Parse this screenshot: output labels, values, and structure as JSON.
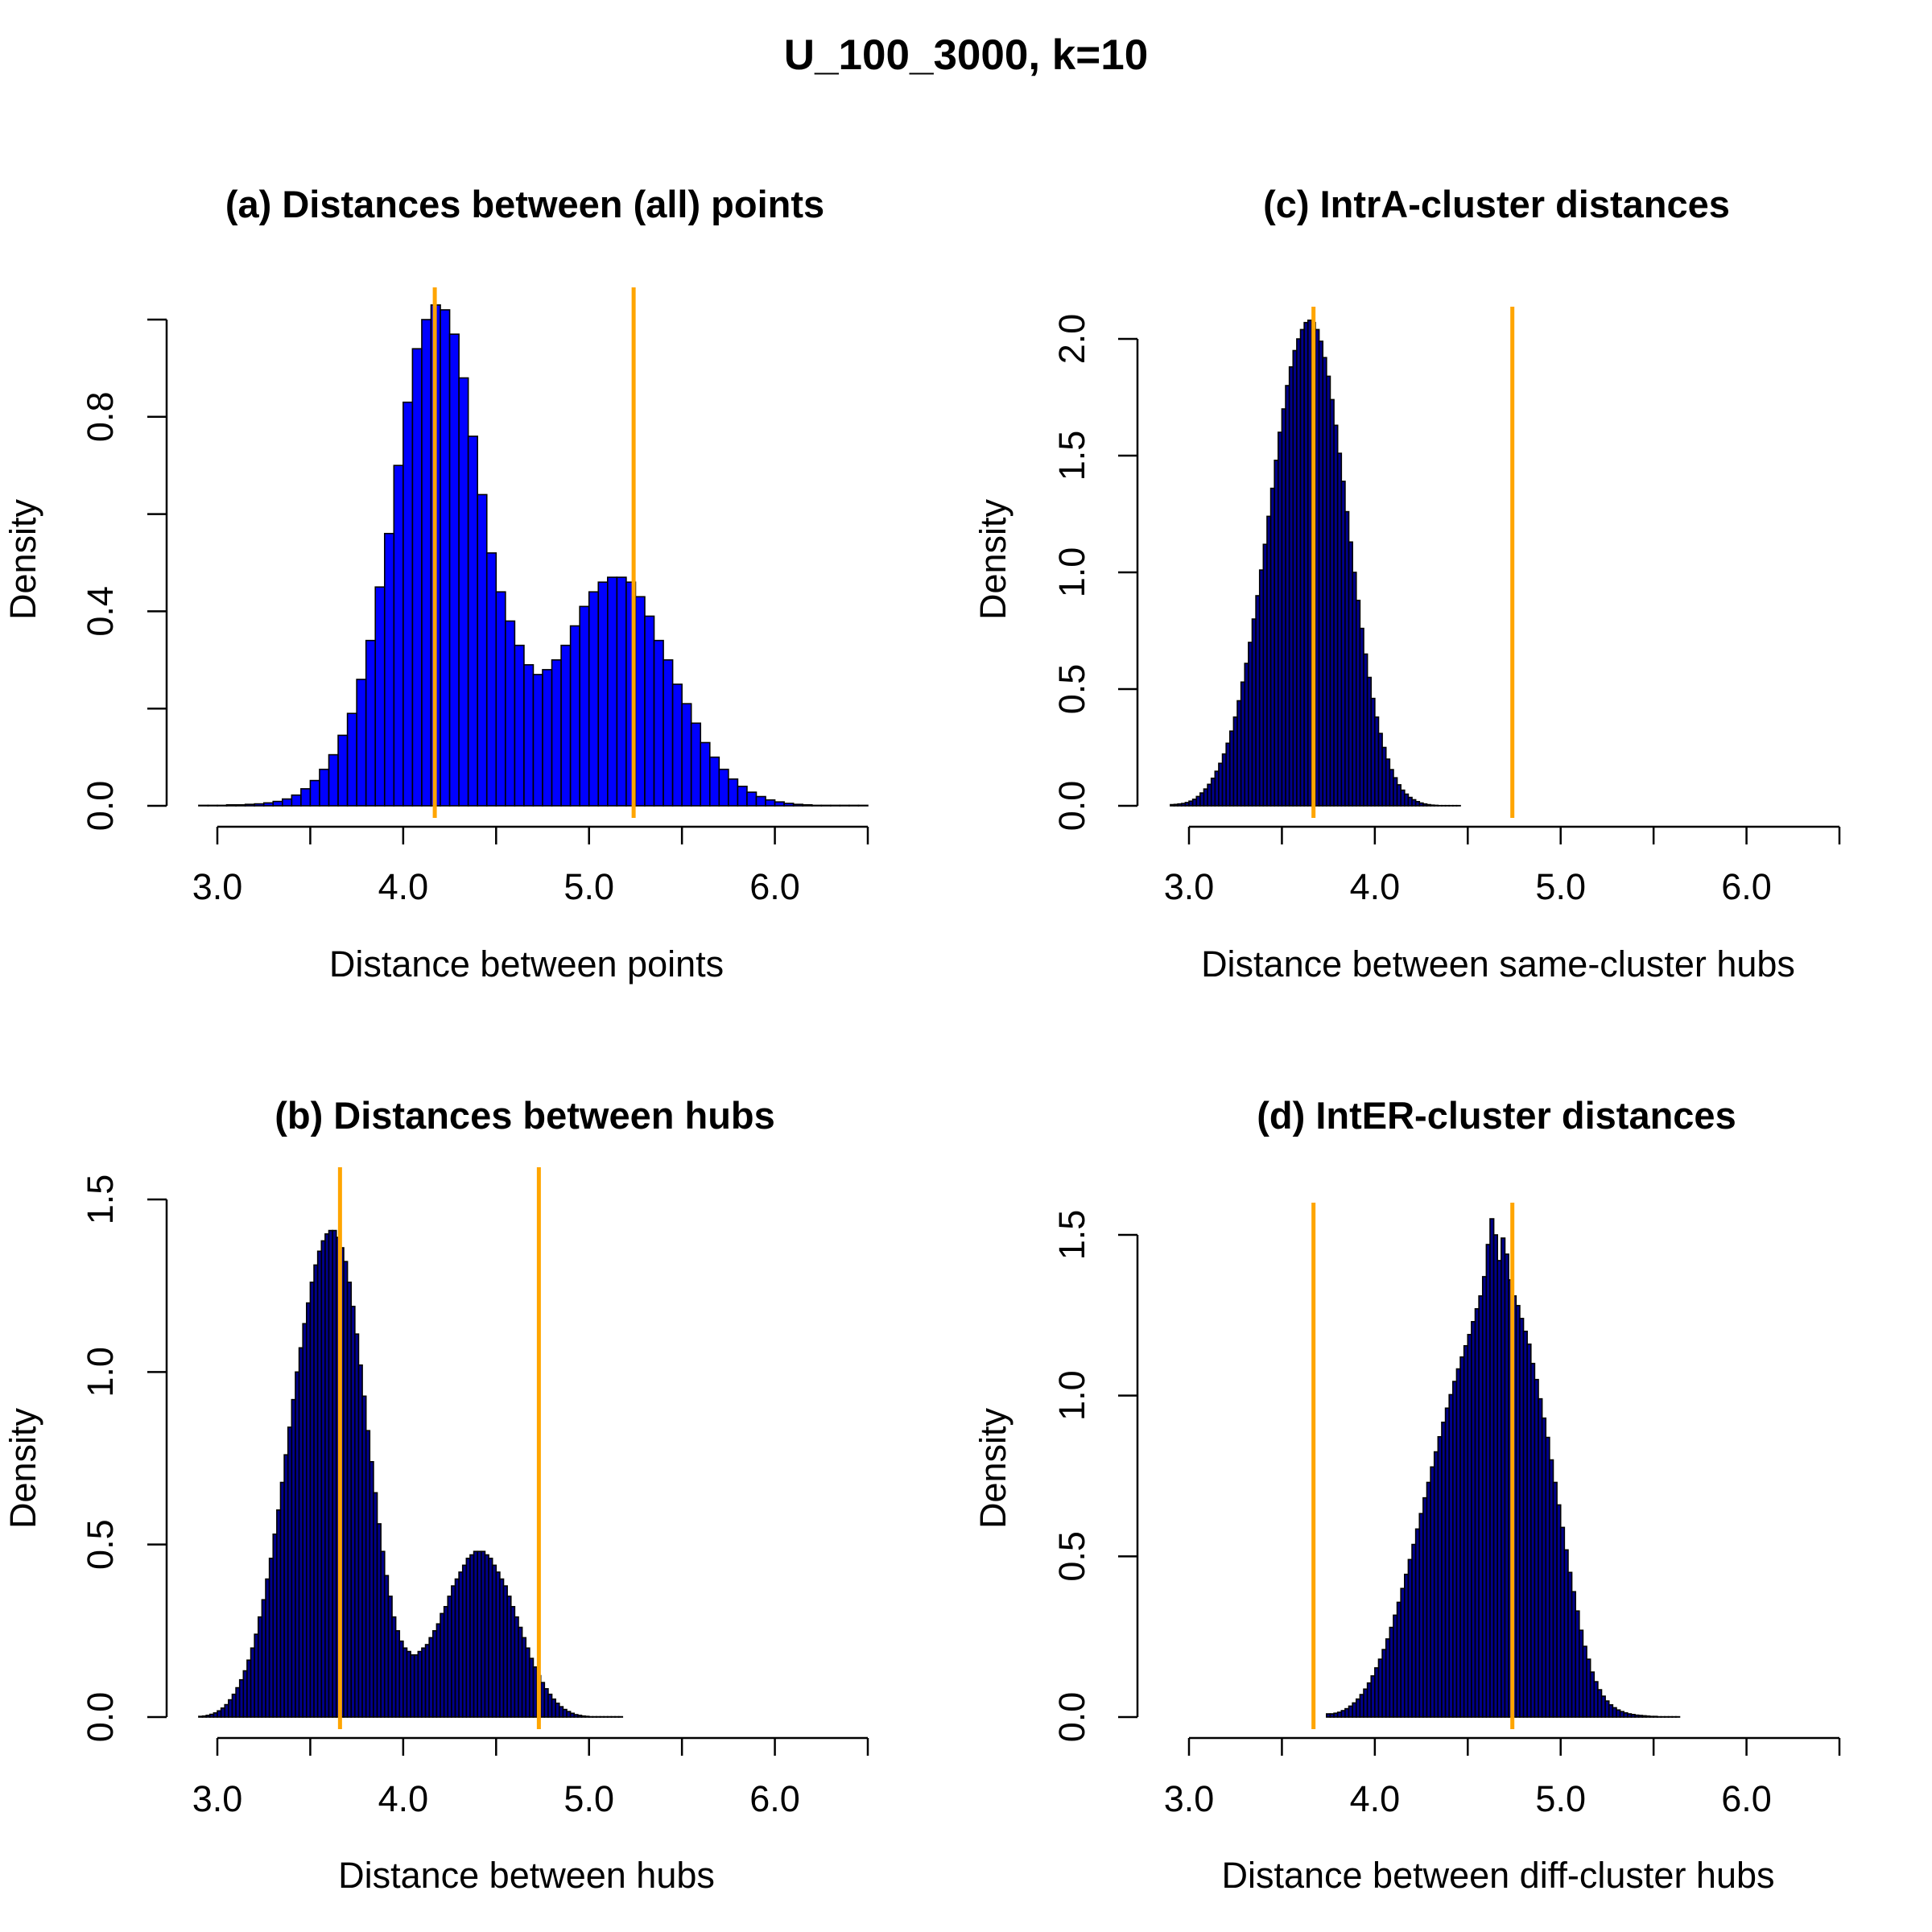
{
  "title": "U_100_3000, k=10",
  "colors": {
    "bar_light": "#0000ff",
    "bar_dark": "#00008b",
    "vline": "#ffa500"
  },
  "chart_data": [
    {
      "id": "a",
      "type": "histogram",
      "title": "(a) Distances between (all) points",
      "xlabel": "Distance between points",
      "ylabel": "Density",
      "xticks": [
        "3.0",
        "",
        "4.0",
        "",
        "5.0",
        "",
        "6.0",
        ""
      ],
      "xtick_values": [
        3.0,
        3.5,
        4.0,
        4.5,
        5.0,
        5.5,
        6.0,
        6.5
      ],
      "yticks": [
        "0.0",
        "",
        "0.4",
        "",
        "0.8",
        ""
      ],
      "ytick_values": [
        0.0,
        0.2,
        0.4,
        0.6,
        0.8,
        1.0
      ],
      "xlim": [
        3.0,
        6.5
      ],
      "ylim": [
        0,
        1.0
      ],
      "bar_color": "#0000ff",
      "bins": {
        "start": 2.9,
        "width": 0.05,
        "values": [
          0.001,
          0.001,
          0.001,
          0.002,
          0.002,
          0.003,
          0.004,
          0.006,
          0.009,
          0.014,
          0.022,
          0.035,
          0.052,
          0.075,
          0.105,
          0.145,
          0.19,
          0.26,
          0.34,
          0.45,
          0.56,
          0.7,
          0.83,
          0.94,
          1.0,
          1.03,
          1.02,
          0.97,
          0.88,
          0.76,
          0.64,
          0.52,
          0.44,
          0.38,
          0.33,
          0.29,
          0.27,
          0.28,
          0.3,
          0.33,
          0.37,
          0.41,
          0.44,
          0.46,
          0.47,
          0.47,
          0.46,
          0.43,
          0.39,
          0.34,
          0.3,
          0.25,
          0.21,
          0.17,
          0.13,
          0.1,
          0.075,
          0.055,
          0.04,
          0.028,
          0.019,
          0.012,
          0.008,
          0.005,
          0.003,
          0.002,
          0.001,
          0.001,
          0.001,
          0.001,
          0.001,
          0.001
        ]
      },
      "vlines": [
        4.17,
        5.24
      ]
    },
    {
      "id": "c",
      "type": "histogram",
      "title": "(c) IntrA-cluster distances",
      "xlabel": "Distance between same-cluster hubs",
      "ylabel": "Density",
      "xticks": [
        "3.0",
        "",
        "4.0",
        "",
        "5.0",
        "",
        "6.0",
        ""
      ],
      "xtick_values": [
        3.0,
        3.5,
        4.0,
        4.5,
        5.0,
        5.5,
        6.0,
        6.5
      ],
      "yticks": [
        "0.0",
        "0.5",
        "1.0",
        "1.5",
        "2.0"
      ],
      "ytick_values": [
        0.0,
        0.5,
        1.0,
        1.5,
        2.0
      ],
      "xlim": [
        3.0,
        6.5
      ],
      "ylim": [
        0,
        2.0
      ],
      "bar_color": "#00008b",
      "bins": {
        "start": 2.9,
        "width": 0.02,
        "values": [
          0.005,
          0.006,
          0.008,
          0.01,
          0.014,
          0.02,
          0.028,
          0.04,
          0.055,
          0.072,
          0.092,
          0.118,
          0.148,
          0.182,
          0.222,
          0.268,
          0.32,
          0.38,
          0.45,
          0.53,
          0.61,
          0.7,
          0.8,
          0.9,
          1.01,
          1.12,
          1.24,
          1.36,
          1.48,
          1.6,
          1.7,
          1.8,
          1.88,
          1.95,
          2.0,
          2.04,
          2.07,
          2.08,
          2.07,
          2.04,
          1.99,
          1.92,
          1.84,
          1.74,
          1.63,
          1.51,
          1.39,
          1.26,
          1.13,
          1.0,
          0.88,
          0.76,
          0.65,
          0.55,
          0.46,
          0.38,
          0.31,
          0.25,
          0.2,
          0.155,
          0.12,
          0.09,
          0.067,
          0.05,
          0.036,
          0.026,
          0.018,
          0.012,
          0.008,
          0.005,
          0.003,
          0.002,
          0.001,
          0.001,
          0.001,
          0.001,
          0.001,
          0.001
        ]
      },
      "vlines": [
        3.67,
        4.74
      ]
    },
    {
      "id": "b",
      "type": "histogram",
      "title": "(b) Distances between hubs",
      "xlabel": "Distance between hubs",
      "ylabel": "Density",
      "xticks": [
        "3.0",
        "",
        "4.0",
        "",
        "5.0",
        "",
        "6.0",
        ""
      ],
      "xtick_values": [
        3.0,
        3.5,
        4.0,
        4.5,
        5.0,
        5.5,
        6.0,
        6.5
      ],
      "yticks": [
        "0.0",
        "0.5",
        "1.0",
        "1.5"
      ],
      "ytick_values": [
        0.0,
        0.5,
        1.0,
        1.5
      ],
      "xlim": [
        3.0,
        6.5
      ],
      "ylim": [
        0,
        1.5
      ],
      "bar_color": "#00008b",
      "bins": {
        "start": 2.9,
        "width": 0.02,
        "values": [
          0.002,
          0.003,
          0.005,
          0.008,
          0.012,
          0.018,
          0.026,
          0.036,
          0.05,
          0.066,
          0.085,
          0.108,
          0.134,
          0.165,
          0.2,
          0.24,
          0.29,
          0.34,
          0.4,
          0.46,
          0.53,
          0.6,
          0.68,
          0.76,
          0.84,
          0.92,
          1.0,
          1.07,
          1.14,
          1.2,
          1.26,
          1.31,
          1.35,
          1.38,
          1.4,
          1.41,
          1.41,
          1.39,
          1.36,
          1.32,
          1.26,
          1.19,
          1.11,
          1.02,
          0.93,
          0.83,
          0.74,
          0.65,
          0.56,
          0.48,
          0.41,
          0.35,
          0.29,
          0.25,
          0.22,
          0.2,
          0.19,
          0.18,
          0.18,
          0.19,
          0.2,
          0.21,
          0.23,
          0.25,
          0.27,
          0.3,
          0.32,
          0.35,
          0.38,
          0.4,
          0.42,
          0.44,
          0.46,
          0.47,
          0.48,
          0.48,
          0.48,
          0.47,
          0.46,
          0.44,
          0.42,
          0.4,
          0.38,
          0.35,
          0.32,
          0.29,
          0.26,
          0.23,
          0.2,
          0.17,
          0.145,
          0.12,
          0.1,
          0.082,
          0.066,
          0.052,
          0.04,
          0.03,
          0.022,
          0.016,
          0.011,
          0.007,
          0.005,
          0.003,
          0.002,
          0.001,
          0.001,
          0.001,
          0.001,
          0.001,
          0.001,
          0.001,
          0.001,
          0.001
        ]
      },
      "vlines": [
        3.66,
        4.73
      ]
    },
    {
      "id": "d",
      "type": "histogram",
      "title": "(d) IntER-cluster distances",
      "xlabel": "Distance between diff-cluster hubs",
      "ylabel": "Density",
      "xticks": [
        "3.0",
        "",
        "4.0",
        "",
        "5.0",
        "",
        "6.0",
        ""
      ],
      "xtick_values": [
        3.0,
        3.5,
        4.0,
        4.5,
        5.0,
        5.5,
        6.0,
        6.5
      ],
      "yticks": [
        "0.0",
        "0.5",
        "1.0",
        "1.5"
      ],
      "ytick_values": [
        0.0,
        0.5,
        1.0,
        1.5
      ],
      "xlim": [
        3.0,
        6.5
      ],
      "ylim": [
        0,
        1.5
      ],
      "bar_color": "#00008b",
      "bins": {
        "start": 3.74,
        "width": 0.02,
        "values": [
          0.01,
          0.01,
          0.012,
          0.015,
          0.02,
          0.026,
          0.034,
          0.044,
          0.056,
          0.07,
          0.087,
          0.106,
          0.128,
          0.153,
          0.18,
          0.21,
          0.243,
          0.279,
          0.317,
          0.357,
          0.4,
          0.444,
          0.49,
          0.537,
          0.585,
          0.633,
          0.682,
          0.73,
          0.778,
          0.825,
          0.872,
          0.917,
          0.961,
          1.003,
          1.044,
          1.083,
          1.12,
          1.155,
          1.19,
          1.23,
          1.27,
          1.31,
          1.37,
          1.47,
          1.55,
          1.5,
          1.42,
          1.49,
          1.44,
          1.36,
          1.31,
          1.28,
          1.24,
          1.2,
          1.16,
          1.1,
          1.05,
          0.99,
          0.93,
          0.87,
          0.8,
          0.73,
          0.66,
          0.59,
          0.52,
          0.45,
          0.39,
          0.33,
          0.27,
          0.22,
          0.18,
          0.14,
          0.11,
          0.085,
          0.065,
          0.05,
          0.038,
          0.029,
          0.022,
          0.017,
          0.013,
          0.01,
          0.008,
          0.006,
          0.005,
          0.004,
          0.003,
          0.002,
          0.002,
          0.001,
          0.001,
          0.001,
          0.001,
          0.001,
          0.001
        ]
      },
      "vlines": [
        3.67,
        4.74
      ]
    }
  ]
}
